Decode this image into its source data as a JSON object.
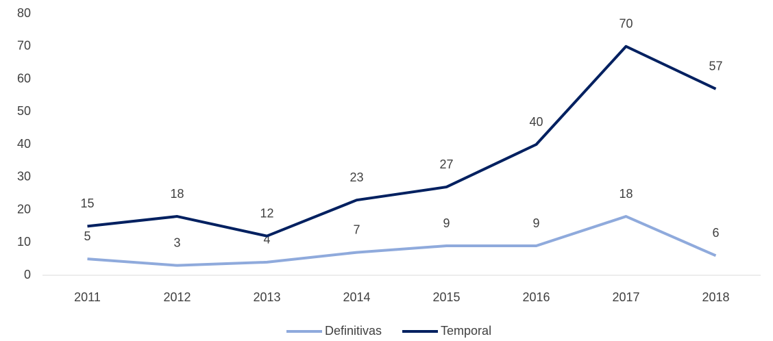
{
  "chart_data": {
    "type": "line",
    "categories": [
      "2011",
      "2012",
      "2013",
      "2014",
      "2015",
      "2016",
      "2017",
      "2018"
    ],
    "series": [
      {
        "name": "Definitivas",
        "color": "#8faadc",
        "values": [
          5,
          3,
          4,
          7,
          9,
          9,
          18,
          6
        ]
      },
      {
        "name": "Temporal",
        "color": "#002060",
        "values": [
          15,
          18,
          12,
          23,
          27,
          40,
          70,
          57
        ]
      }
    ],
    "ylim": [
      0,
      80
    ],
    "yticks": [
      0,
      10,
      20,
      30,
      40,
      50,
      60,
      70,
      80
    ],
    "grid": false,
    "legend": "bottom"
  }
}
